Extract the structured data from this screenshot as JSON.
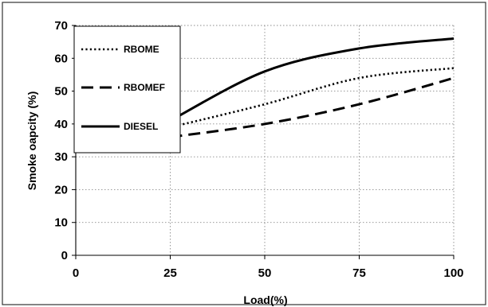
{
  "chart_data": {
    "type": "line",
    "title": "",
    "xlabel": "Load(%)",
    "ylabel": "Smoke oapcity (%)",
    "xlim": [
      0,
      100
    ],
    "ylim": [
      0,
      70
    ],
    "xticks": [
      0,
      25,
      50,
      75,
      100
    ],
    "yticks": [
      0,
      10,
      20,
      30,
      40,
      50,
      60,
      70
    ],
    "grid": true,
    "legend_position": "top-left",
    "series": [
      {
        "name": "RBOME",
        "style": "dotted",
        "x": [
          25,
          50,
          75,
          100
        ],
        "y": [
          39,
          46,
          54,
          57
        ]
      },
      {
        "name": "RBOMEF",
        "style": "dashed",
        "x": [
          25,
          50,
          75,
          100
        ],
        "y": [
          36,
          40,
          46,
          54
        ]
      },
      {
        "name": "DIESEL",
        "style": "solid",
        "x": [
          25,
          50,
          75,
          100
        ],
        "y": [
          41,
          56,
          63,
          66
        ]
      }
    ]
  }
}
